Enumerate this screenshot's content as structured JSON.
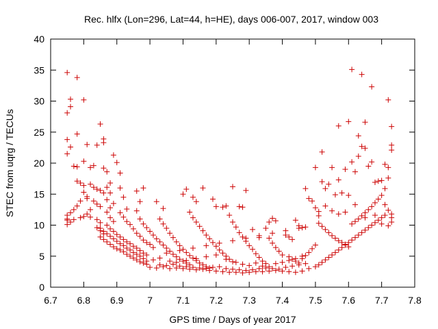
{
  "chart_data": {
    "type": "scatter",
    "title": "Rec. hlfx (Lon=296, Lat=44, h=HE), days 006-007, 2017, window 003",
    "xlabel": "GPS time / Days of year 2017",
    "ylabel": "STEC from uqrg / TECUs",
    "xlim": [
      6.7,
      7.8
    ],
    "ylim": [
      0,
      40
    ],
    "xticks": [
      "6.7",
      "6.8",
      "6.9",
      "7",
      "7.1",
      "7.2",
      "7.3",
      "7.4",
      "7.5",
      "7.6",
      "7.7",
      "7.8"
    ],
    "yticks": [
      "0",
      "5",
      "10",
      "15",
      "20",
      "25",
      "30",
      "35",
      "40"
    ],
    "grid": false,
    "marker": "+",
    "color": "#cc0000",
    "points": [
      [
        6.75,
        34.6
      ],
      [
        6.75,
        28.1
      ],
      [
        6.76,
        30.3
      ],
      [
        6.76,
        29.1
      ],
      [
        6.75,
        23.8
      ],
      [
        6.76,
        22.6
      ],
      [
        6.75,
        21.5
      ],
      [
        6.77,
        19.5
      ],
      [
        6.78,
        19.4
      ],
      [
        6.78,
        17.1
      ],
      [
        6.79,
        16.8
      ],
      [
        6.8,
        16.4
      ],
      [
        6.8,
        15.3
      ],
      [
        6.81,
        14.6
      ],
      [
        6.81,
        14.3
      ],
      [
        6.79,
        13.9
      ],
      [
        6.78,
        13.1
      ],
      [
        6.77,
        12.5
      ],
      [
        6.76,
        12.0
      ],
      [
        6.75,
        11.6
      ],
      [
        6.75,
        11.0
      ],
      [
        6.75,
        10.8
      ],
      [
        6.76,
        10.5
      ],
      [
        6.75,
        10.1
      ],
      [
        6.77,
        10.9
      ],
      [
        6.79,
        11.2
      ],
      [
        6.78,
        33.8
      ],
      [
        6.8,
        30.2
      ],
      [
        6.78,
        24.7
      ],
      [
        6.8,
        20.3
      ],
      [
        6.81,
        23.0
      ],
      [
        6.82,
        19.3
      ],
      [
        6.83,
        19.6
      ],
      [
        6.82,
        16.6
      ],
      [
        6.83,
        16.1
      ],
      [
        6.84,
        15.8
      ],
      [
        6.85,
        15.6
      ],
      [
        6.86,
        15.2
      ],
      [
        6.83,
        13.9
      ],
      [
        6.84,
        13.4
      ],
      [
        6.85,
        13.0
      ],
      [
        6.82,
        12.5
      ],
      [
        6.81,
        11.8
      ],
      [
        6.8,
        11.4
      ],
      [
        6.82,
        11.3
      ],
      [
        6.84,
        10.9
      ],
      [
        6.85,
        10.4
      ],
      [
        6.84,
        9.6
      ],
      [
        6.85,
        9.1
      ],
      [
        6.86,
        8.6
      ],
      [
        6.85,
        8.1
      ],
      [
        6.86,
        7.7
      ],
      [
        6.87,
        7.3
      ],
      [
        6.88,
        6.9
      ],
      [
        6.89,
        6.5
      ],
      [
        6.9,
        6.2
      ],
      [
        6.91,
        6.0
      ],
      [
        6.92,
        5.7
      ],
      [
        6.93,
        5.3
      ],
      [
        6.94,
        5.0
      ],
      [
        6.95,
        4.7
      ],
      [
        6.96,
        4.4
      ],
      [
        6.97,
        4.1
      ],
      [
        6.98,
        3.9
      ],
      [
        6.99,
        3.7
      ],
      [
        6.85,
        26.3
      ],
      [
        6.86,
        23.9
      ],
      [
        6.86,
        23.3
      ],
      [
        6.84,
        22.9
      ],
      [
        6.86,
        19.2
      ],
      [
        6.87,
        18.6
      ],
      [
        6.88,
        16.8
      ],
      [
        6.87,
        16.1
      ],
      [
        6.88,
        15.2
      ],
      [
        6.87,
        14.1
      ],
      [
        6.89,
        13.5
      ],
      [
        6.88,
        12.8
      ],
      [
        6.87,
        12.1
      ],
      [
        6.88,
        11.2
      ],
      [
        6.89,
        10.6
      ],
      [
        6.87,
        10.0
      ],
      [
        6.88,
        9.4
      ],
      [
        6.89,
        9.0
      ],
      [
        6.9,
        8.5
      ],
      [
        6.91,
        8.1
      ],
      [
        6.92,
        7.7
      ],
      [
        6.93,
        7.3
      ],
      [
        6.94,
        7.0
      ],
      [
        6.95,
        6.6
      ],
      [
        6.96,
        6.3
      ],
      [
        6.97,
        5.9
      ],
      [
        6.98,
        5.5
      ],
      [
        6.99,
        5.2
      ],
      [
        6.89,
        21.3
      ],
      [
        6.9,
        20.1
      ],
      [
        6.91,
        18.4
      ],
      [
        6.91,
        16.0
      ],
      [
        6.92,
        14.5
      ],
      [
        6.93,
        12.6
      ],
      [
        6.91,
        12.0
      ],
      [
        6.92,
        11.3
      ],
      [
        6.93,
        10.6
      ],
      [
        6.94,
        10.1
      ],
      [
        6.95,
        9.4
      ],
      [
        6.96,
        8.7
      ],
      [
        6.97,
        8.2
      ],
      [
        6.98,
        7.6
      ],
      [
        6.99,
        7.2
      ],
      [
        7.0,
        6.9
      ],
      [
        7.01,
        6.4
      ],
      [
        6.96,
        15.5
      ],
      [
        6.97,
        13.8
      ],
      [
        6.98,
        16.0
      ],
      [
        6.96,
        12.3
      ],
      [
        6.97,
        11.0
      ],
      [
        6.98,
        10.2
      ],
      [
        6.99,
        9.6
      ],
      [
        7.0,
        9.0
      ],
      [
        7.01,
        8.4
      ],
      [
        7.02,
        7.8
      ],
      [
        7.03,
        7.3
      ],
      [
        7.04,
        6.8
      ],
      [
        7.05,
        6.3
      ],
      [
        7.06,
        5.8
      ],
      [
        7.07,
        5.3
      ],
      [
        7.08,
        4.9
      ],
      [
        7.09,
        4.5
      ],
      [
        7.1,
        4.2
      ],
      [
        7.11,
        3.9
      ],
      [
        7.12,
        3.6
      ],
      [
        7.02,
        13.8
      ],
      [
        7.04,
        12.7
      ],
      [
        7.03,
        11.0
      ],
      [
        7.04,
        10.2
      ],
      [
        7.05,
        9.5
      ],
      [
        7.06,
        8.7
      ],
      [
        7.07,
        8.0
      ],
      [
        7.08,
        7.3
      ],
      [
        7.09,
        6.7
      ],
      [
        7.1,
        6.1
      ],
      [
        7.11,
        5.6
      ],
      [
        7.12,
        5.1
      ],
      [
        7.13,
        4.7
      ],
      [
        7.14,
        4.3
      ],
      [
        7.15,
        3.9
      ],
      [
        7.16,
        3.6
      ],
      [
        7.17,
        3.3
      ],
      [
        7.18,
        3.1
      ],
      [
        7.1,
        15.0
      ],
      [
        7.11,
        15.8
      ],
      [
        7.13,
        14.5
      ],
      [
        7.14,
        13.8
      ],
      [
        7.12,
        12.1
      ],
      [
        7.13,
        11.2
      ],
      [
        7.14,
        10.5
      ],
      [
        7.15,
        9.8
      ],
      [
        7.16,
        16.0
      ],
      [
        7.16,
        9.1
      ],
      [
        7.17,
        8.4
      ],
      [
        7.18,
        7.8
      ],
      [
        7.19,
        7.2
      ],
      [
        7.2,
        6.6
      ],
      [
        7.21,
        6.0
      ],
      [
        7.22,
        5.5
      ],
      [
        7.23,
        5.0
      ],
      [
        7.24,
        4.5
      ],
      [
        7.25,
        4.1
      ],
      [
        7.19,
        14.2
      ],
      [
        7.2,
        13.0
      ],
      [
        7.22,
        12.9
      ],
      [
        7.23,
        13.1
      ],
      [
        7.24,
        11.6
      ],
      [
        7.25,
        16.2
      ],
      [
        7.25,
        10.5
      ],
      [
        7.26,
        9.7
      ],
      [
        7.27,
        13.0
      ],
      [
        7.28,
        12.9
      ],
      [
        7.29,
        15.6
      ],
      [
        7.27,
        8.8
      ],
      [
        7.28,
        8.1
      ],
      [
        7.29,
        7.4
      ],
      [
        7.3,
        6.7
      ],
      [
        7.31,
        6.1
      ],
      [
        7.32,
        5.4
      ],
      [
        7.33,
        4.8
      ],
      [
        7.34,
        4.2
      ],
      [
        7.35,
        3.8
      ],
      [
        7.31,
        9.3
      ],
      [
        7.33,
        8.0
      ],
      [
        7.35,
        9.5
      ],
      [
        7.36,
        10.5
      ],
      [
        7.37,
        11.1
      ],
      [
        7.38,
        10.7
      ],
      [
        7.36,
        7.9
      ],
      [
        7.37,
        7.1
      ],
      [
        7.38,
        6.4
      ],
      [
        7.39,
        5.8
      ],
      [
        7.4,
        5.2
      ],
      [
        7.41,
        8.4
      ],
      [
        7.42,
        8.1
      ],
      [
        7.43,
        7.7
      ],
      [
        7.44,
        10.8
      ],
      [
        7.45,
        9.9
      ],
      [
        7.46,
        9.6
      ],
      [
        7.47,
        9.7
      ],
      [
        7.42,
        4.9
      ],
      [
        7.43,
        4.5
      ],
      [
        7.44,
        4.2
      ],
      [
        7.45,
        3.9
      ],
      [
        7.46,
        4.6
      ],
      [
        7.47,
        5.1
      ],
      [
        7.48,
        5.6
      ],
      [
        7.49,
        6.2
      ],
      [
        7.5,
        6.8
      ],
      [
        7.47,
        15.9
      ],
      [
        7.48,
        14.3
      ],
      [
        7.49,
        13.9
      ],
      [
        7.5,
        19.3
      ],
      [
        7.51,
        12.2
      ],
      [
        7.51,
        11.5
      ],
      [
        7.52,
        21.8
      ],
      [
        7.52,
        17.0
      ],
      [
        7.53,
        15.9
      ],
      [
        7.54,
        16.6
      ],
      [
        7.55,
        19.3
      ],
      [
        7.56,
        14.9
      ],
      [
        7.57,
        26.0
      ],
      [
        7.57,
        17.3
      ],
      [
        7.58,
        15.2
      ],
      [
        7.59,
        19.0
      ],
      [
        7.6,
        26.7
      ],
      [
        7.61,
        35.1
      ],
      [
        7.61,
        20.2
      ],
      [
        7.62,
        18.6
      ],
      [
        7.63,
        24.4
      ],
      [
        7.63,
        21.1
      ],
      [
        7.64,
        34.3
      ],
      [
        7.64,
        22.7
      ],
      [
        7.65,
        22.4
      ],
      [
        7.65,
        26.6
      ],
      [
        7.66,
        19.5
      ],
      [
        7.67,
        32.3
      ],
      [
        7.67,
        20.2
      ],
      [
        7.68,
        16.9
      ],
      [
        7.69,
        17.1
      ],
      [
        7.7,
        17.2
      ],
      [
        7.71,
        19.8
      ],
      [
        7.71,
        15.9
      ],
      [
        7.72,
        30.2
      ],
      [
        7.72,
        17.6
      ],
      [
        7.73,
        25.9
      ],
      [
        7.73,
        22.9
      ],
      [
        7.73,
        22.1
      ],
      [
        7.72,
        19.3
      ],
      [
        7.5,
        12.8
      ],
      [
        7.51,
        10.3
      ],
      [
        7.52,
        9.8
      ],
      [
        7.53,
        9.3
      ],
      [
        7.54,
        8.8
      ],
      [
        7.55,
        8.3
      ],
      [
        7.56,
        7.9
      ],
      [
        7.57,
        7.5
      ],
      [
        7.58,
        7.2
      ],
      [
        7.59,
        6.9
      ],
      [
        7.6,
        6.5
      ],
      [
        7.61,
        10.2
      ],
      [
        7.62,
        10.6
      ],
      [
        7.63,
        11.0
      ],
      [
        7.64,
        11.5
      ],
      [
        7.65,
        12.0
      ],
      [
        7.66,
        12.5
      ],
      [
        7.67,
        13.0
      ],
      [
        7.68,
        13.6
      ],
      [
        7.69,
        14.2
      ],
      [
        7.7,
        14.8
      ],
      [
        7.71,
        13.3
      ],
      [
        7.72,
        12.4
      ],
      [
        7.73,
        11.8
      ],
      [
        7.73,
        11.2
      ],
      [
        7.73,
        10.5
      ],
      [
        7.51,
        3.6
      ],
      [
        7.52,
        4.0
      ],
      [
        7.53,
        4.4
      ],
      [
        7.54,
        4.8
      ],
      [
        7.55,
        5.2
      ],
      [
        7.56,
        5.6
      ],
      [
        7.57,
        6.0
      ],
      [
        7.58,
        6.4
      ],
      [
        7.59,
        6.8
      ],
      [
        7.6,
        7.2
      ],
      [
        7.61,
        7.6
      ],
      [
        7.62,
        8.0
      ],
      [
        7.63,
        8.4
      ],
      [
        7.64,
        8.8
      ],
      [
        7.65,
        9.2
      ],
      [
        7.66,
        9.6
      ],
      [
        7.67,
        10.0
      ],
      [
        7.68,
        10.4
      ],
      [
        7.69,
        10.8
      ],
      [
        7.7,
        11.2
      ],
      [
        7.71,
        11.6
      ],
      [
        7.53,
        13.1
      ],
      [
        7.55,
        12.3
      ],
      [
        7.57,
        11.8
      ],
      [
        7.59,
        12.1
      ],
      [
        7.6,
        14.8
      ],
      [
        7.62,
        13.3
      ],
      [
        7.65,
        11.2
      ],
      [
        7.68,
        11.6
      ],
      [
        7.7,
        10.2
      ],
      [
        7.72,
        9.9
      ],
      [
        7.0,
        3.2
      ],
      [
        7.02,
        3.1
      ],
      [
        7.04,
        3.3
      ],
      [
        7.06,
        3.0
      ],
      [
        7.08,
        3.1
      ],
      [
        7.1,
        3.0
      ],
      [
        7.12,
        2.9
      ],
      [
        7.14,
        2.8
      ],
      [
        7.16,
        2.9
      ],
      [
        7.18,
        2.7
      ],
      [
        7.2,
        2.6
      ],
      [
        7.22,
        2.5
      ],
      [
        7.24,
        2.4
      ],
      [
        7.26,
        2.4
      ],
      [
        7.28,
        2.3
      ],
      [
        7.3,
        2.4
      ],
      [
        7.32,
        2.5
      ],
      [
        7.34,
        2.5
      ],
      [
        7.36,
        2.6
      ],
      [
        7.38,
        2.7
      ],
      [
        7.4,
        2.6
      ],
      [
        7.42,
        2.5
      ],
      [
        7.44,
        2.4
      ],
      [
        7.46,
        2.6
      ],
      [
        7.48,
        3.0
      ],
      [
        7.5,
        3.3
      ],
      [
        7.03,
        3.6
      ],
      [
        7.05,
        3.5
      ],
      [
        7.07,
        3.7
      ],
      [
        7.09,
        3.4
      ],
      [
        7.11,
        3.3
      ],
      [
        7.13,
        3.2
      ],
      [
        7.15,
        3.1
      ],
      [
        7.17,
        3.0
      ],
      [
        7.19,
        3.2
      ],
      [
        7.21,
        3.3
      ],
      [
        7.23,
        3.0
      ],
      [
        7.25,
        2.9
      ],
      [
        7.27,
        2.8
      ],
      [
        7.29,
        2.7
      ],
      [
        7.31,
        2.8
      ],
      [
        7.33,
        3.0
      ],
      [
        7.35,
        3.1
      ],
      [
        7.37,
        3.0
      ],
      [
        7.39,
        2.9
      ],
      [
        7.41,
        3.2
      ],
      [
        7.43,
        3.4
      ],
      [
        7.45,
        3.6
      ],
      [
        7.47,
        3.8
      ],
      [
        7.01,
        4.4
      ],
      [
        7.03,
        4.7
      ],
      [
        7.06,
        4.2
      ],
      [
        7.08,
        4.0
      ],
      [
        7.11,
        4.3
      ],
      [
        7.14,
        4.6
      ],
      [
        7.17,
        4.9
      ],
      [
        7.2,
        5.2
      ],
      [
        7.23,
        4.5
      ],
      [
        7.26,
        4.0
      ],
      [
        7.28,
        3.7
      ],
      [
        7.3,
        3.5
      ],
      [
        7.32,
        3.9
      ],
      [
        7.34,
        3.4
      ],
      [
        7.36,
        3.3
      ],
      [
        7.38,
        3.8
      ],
      [
        7.4,
        4.0
      ],
      [
        7.42,
        4.3
      ],
      [
        7.44,
        4.6
      ],
      [
        7.46,
        5.0
      ],
      [
        7.05,
        5.5
      ],
      [
        7.09,
        5.9
      ],
      [
        7.13,
        6.3
      ],
      [
        7.17,
        6.7
      ],
      [
        7.21,
        7.1
      ],
      [
        7.25,
        7.5
      ],
      [
        7.29,
        7.9
      ],
      [
        7.33,
        8.3
      ],
      [
        7.37,
        8.7
      ],
      [
        7.41,
        9.1
      ],
      [
        7.45,
        9.5
      ],
      [
        6.99,
        4.2
      ],
      [
        6.98,
        4.6
      ],
      [
        6.97,
        5.0
      ],
      [
        6.96,
        5.3
      ],
      [
        6.95,
        5.6
      ],
      [
        6.94,
        6.0
      ],
      [
        6.93,
        6.3
      ],
      [
        6.92,
        6.7
      ],
      [
        6.91,
        7.0
      ],
      [
        6.9,
        7.4
      ],
      [
        6.89,
        7.8
      ],
      [
        6.88,
        8.2
      ],
      [
        6.87,
        8.6
      ],
      [
        6.86,
        9.0
      ],
      [
        6.85,
        9.5
      ]
    ]
  }
}
